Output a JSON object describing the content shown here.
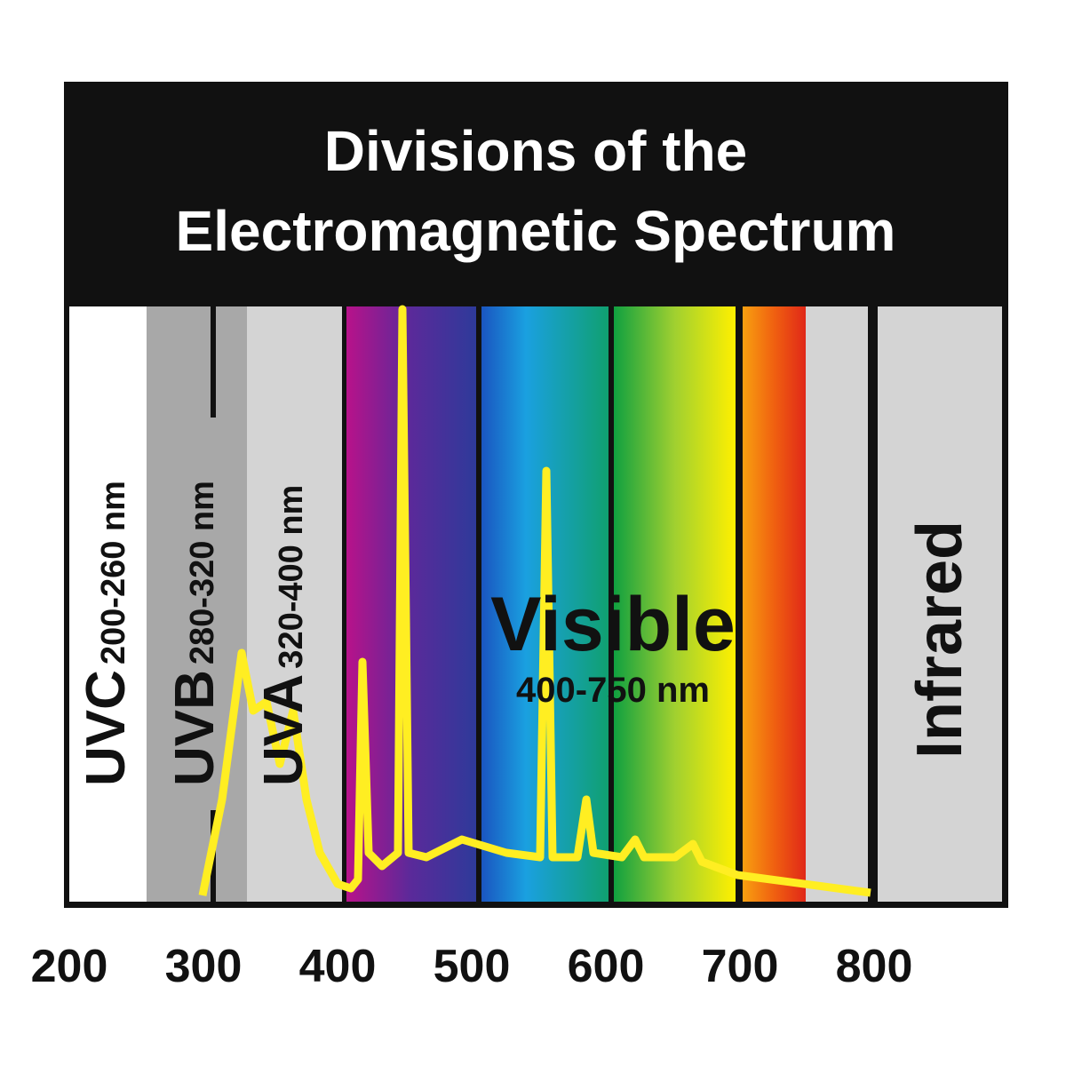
{
  "title": {
    "lines": [
      "Divisions of the",
      "Electromagnetic Spectrum"
    ]
  },
  "bands": [
    {
      "name": "UVC",
      "range": "200-260 nm"
    },
    {
      "name": "UVB",
      "range": "280-320 nm"
    },
    {
      "name": "UVA",
      "range": "320-400 nm"
    }
  ],
  "visible": {
    "name": "Visible",
    "range": "400-750 nm"
  },
  "infrared": {
    "name": "Infrared"
  },
  "axis": {
    "ticks": [
      200,
      300,
      400,
      500,
      600,
      700,
      800
    ]
  }
}
